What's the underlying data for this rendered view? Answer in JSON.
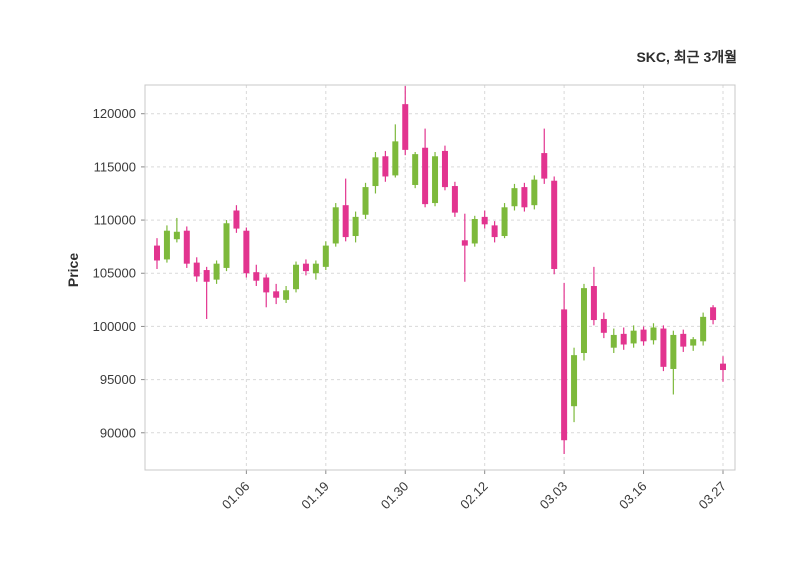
{
  "chart_data": {
    "type": "candlestick",
    "title": "SKC, 최근 3개월",
    "ylabel": "Price",
    "grid": "dashed",
    "legend": "none",
    "up_color": "#7db93b",
    "down_color": "#e2348f",
    "grid_color": "#d9d9d9",
    "frame_color": "#c8c8c8",
    "tick_text_color": "#3a3a3a",
    "ylim": [
      86500,
      122700
    ],
    "yticks": [
      90000,
      95000,
      100000,
      105000,
      110000,
      115000,
      120000
    ],
    "xticks": [
      {
        "index": 9,
        "label": "01.06"
      },
      {
        "index": 17,
        "label": "01.19"
      },
      {
        "index": 25,
        "label": "01.30"
      },
      {
        "index": 33,
        "label": "02.12"
      },
      {
        "index": 41,
        "label": "03.03"
      },
      {
        "index": 49,
        "label": "03.16"
      },
      {
        "index": 57,
        "label": "03.27"
      }
    ],
    "ohlc_order": [
      "open",
      "high",
      "low",
      "close"
    ],
    "candles": [
      [
        107600,
        108300,
        105400,
        106200
      ],
      [
        106300,
        109500,
        106000,
        109000
      ],
      [
        108200,
        110200,
        107900,
        108900
      ],
      [
        109000,
        109400,
        105500,
        105900
      ],
      [
        106000,
        106500,
        104200,
        104700
      ],
      [
        105300,
        105600,
        100700,
        104200
      ],
      [
        104400,
        106200,
        104000,
        105900
      ],
      [
        105500,
        110000,
        105200,
        109700
      ],
      [
        110900,
        111400,
        108800,
        109200
      ],
      [
        109000,
        109300,
        104600,
        105000
      ],
      [
        105100,
        105800,
        103800,
        104300
      ],
      [
        104600,
        104900,
        101800,
        103200
      ],
      [
        103300,
        104000,
        102100,
        102700
      ],
      [
        102500,
        103800,
        102200,
        103400
      ],
      [
        103500,
        106100,
        103200,
        105800
      ],
      [
        105900,
        106300,
        104800,
        105200
      ],
      [
        105000,
        106200,
        104400,
        105900
      ],
      [
        105600,
        108000,
        105300,
        107600
      ],
      [
        107800,
        111600,
        107500,
        111200
      ],
      [
        111400,
        113900,
        108000,
        108400
      ],
      [
        108500,
        110800,
        107900,
        110300
      ],
      [
        110500,
        113500,
        110100,
        113100
      ],
      [
        113200,
        116400,
        112500,
        115900
      ],
      [
        116000,
        116500,
        113600,
        114100
      ],
      [
        114200,
        119000,
        114000,
        117400
      ],
      [
        120900,
        122600,
        116100,
        116600
      ],
      [
        113300,
        116400,
        113000,
        116200
      ],
      [
        116800,
        118600,
        111200,
        111500
      ],
      [
        111600,
        116400,
        111300,
        116000
      ],
      [
        116500,
        117000,
        112800,
        113100
      ],
      [
        113200,
        113600,
        110300,
        110700
      ],
      [
        108100,
        110600,
        104200,
        107600
      ],
      [
        107800,
        110400,
        107500,
        110100
      ],
      [
        110300,
        110900,
        109200,
        109600
      ],
      [
        109500,
        109900,
        107900,
        108400
      ],
      [
        108500,
        111600,
        108300,
        111200
      ],
      [
        111300,
        113400,
        110900,
        113000
      ],
      [
        113100,
        113500,
        110800,
        111200
      ],
      [
        111400,
        114200,
        111000,
        113800
      ],
      [
        116300,
        118600,
        113400,
        113900
      ],
      [
        113700,
        114100,
        104900,
        105400
      ],
      [
        101600,
        104100,
        88000,
        89300
      ],
      [
        92500,
        98000,
        91000,
        97300
      ],
      [
        97500,
        104000,
        96800,
        103600
      ],
      [
        103800,
        105600,
        100100,
        100600
      ],
      [
        100700,
        101300,
        98900,
        99400
      ],
      [
        98000,
        99800,
        97500,
        99200
      ],
      [
        99300,
        99900,
        97800,
        98300
      ],
      [
        98400,
        100100,
        98000,
        99600
      ],
      [
        99700,
        100000,
        98200,
        98600
      ],
      [
        98700,
        100300,
        98300,
        99900
      ],
      [
        99800,
        100100,
        95800,
        96200
      ],
      [
        96000,
        99600,
        93600,
        99200
      ],
      [
        99300,
        99700,
        97600,
        98100
      ],
      [
        98200,
        99000,
        97700,
        98800
      ],
      [
        98600,
        101300,
        98200,
        100900
      ],
      [
        101800,
        102000,
        100200,
        100600
      ],
      [
        96500,
        97200,
        94800,
        95900
      ]
    ]
  }
}
